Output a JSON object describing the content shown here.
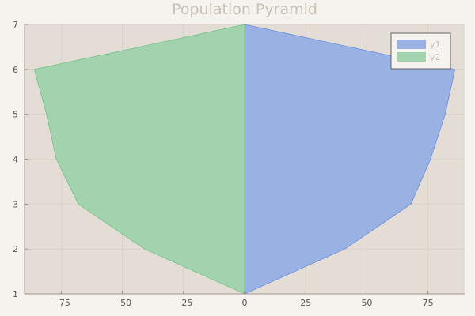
{
  "chart_data": {
    "type": "area",
    "title": "Population Pyramid",
    "xlabel": "",
    "ylabel": "",
    "xlim": [
      -90,
      90
    ],
    "ylim": [
      1,
      7
    ],
    "x_ticks": [
      -75,
      -50,
      -25,
      0,
      25,
      50,
      75
    ],
    "y_ticks": [
      1,
      2,
      3,
      4,
      5,
      6,
      7
    ],
    "grid": true,
    "legend_position": "top-right",
    "series": [
      {
        "name": "y1",
        "color": "#9ab2e3",
        "line_color": "#6f91dd",
        "points": [
          {
            "x": 0,
            "y": 1
          },
          {
            "x": 41,
            "y": 2
          },
          {
            "x": 68,
            "y": 3
          },
          {
            "x": 76,
            "y": 4
          },
          {
            "x": 82,
            "y": 5
          },
          {
            "x": 86,
            "y": 6
          },
          {
            "x": 0,
            "y": 7
          }
        ]
      },
      {
        "name": "y2",
        "color": "#a2d2ae",
        "line_color": "#78c48c",
        "points": [
          {
            "x": 0,
            "y": 1
          },
          {
            "x": -41,
            "y": 2
          },
          {
            "x": -68,
            "y": 3
          },
          {
            "x": -77,
            "y": 4
          },
          {
            "x": -81,
            "y": 5
          },
          {
            "x": -86,
            "y": 6
          },
          {
            "x": 0,
            "y": 7
          }
        ]
      }
    ]
  }
}
